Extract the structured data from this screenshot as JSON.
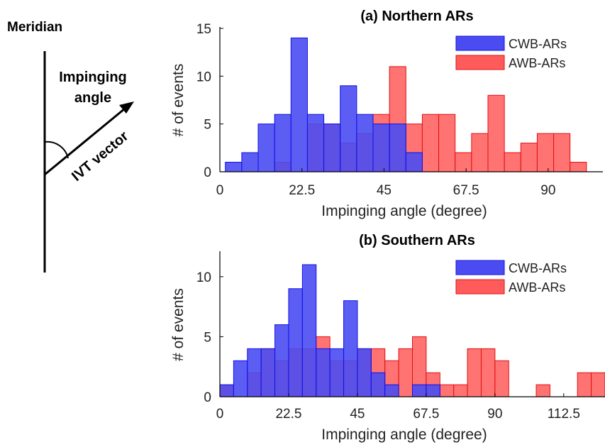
{
  "schematic": {
    "meridian_label": "Meridian",
    "impinging_angle_label_line1": "Impinging",
    "impinging_angle_label_line2": "angle",
    "ivt_vector_label": "IVT vector"
  },
  "colors": {
    "cwb": "#4a4cf2",
    "cwb_edge": "#1010e6",
    "awb": "#ff5b5b",
    "awb_edge": "#e01010",
    "overlap": "#d0237a"
  },
  "chart_data": [
    {
      "type": "bar",
      "title": "(a) Northern ARs",
      "xlabel": "Impinging angle (degree)",
      "ylabel": "# of events",
      "xlim": [
        0,
        105
      ],
      "ylim": [
        0,
        15
      ],
      "xticks": [
        0,
        22.5,
        45,
        67.5,
        90
      ],
      "xtick_labels": [
        "0",
        "22.5",
        "45",
        "67.5",
        "90"
      ],
      "yticks": [
        0,
        5,
        10,
        15
      ],
      "ytick_labels": [
        "0",
        "5",
        "10",
        "15"
      ],
      "bin_width": 4.5,
      "legend_position": "top-right",
      "series": [
        {
          "name": "CWB-ARs",
          "bin_starts": [
            1.5,
            6,
            10.5,
            15,
            19.5,
            24,
            28.5,
            33,
            37.5,
            42,
            46.5,
            51
          ],
          "values": [
            1,
            2,
            5,
            6,
            14,
            6,
            5,
            9,
            6,
            5,
            5,
            2
          ]
        },
        {
          "name": "AWB-ARs",
          "bin_starts": [
            15,
            19.5,
            24,
            28.5,
            33,
            37.5,
            42,
            46.5,
            51,
            55.5,
            60,
            64.5,
            69,
            73.5,
            78,
            82.5,
            87,
            91.5,
            96,
            100.5
          ],
          "values": [
            1,
            0,
            5,
            5,
            3,
            4,
            6,
            11,
            5,
            6,
            6,
            2,
            4,
            8,
            2,
            3,
            4,
            4,
            1,
            0
          ]
        }
      ]
    },
    {
      "type": "bar",
      "title": "(b) Southern ARs",
      "xlabel": "Impinging angle (degree)",
      "ylabel": "# of events",
      "xlim": [
        0,
        126
      ],
      "ylim": [
        0,
        12
      ],
      "xticks": [
        0,
        22.5,
        45,
        67.5,
        90,
        112.5
      ],
      "xtick_labels": [
        "0",
        "22.5",
        "45",
        "67.5",
        "90",
        "112.5"
      ],
      "yticks": [
        0,
        5,
        10
      ],
      "ytick_labels": [
        "0",
        "5",
        "10"
      ],
      "bin_width": 4.5,
      "legend_position": "top-right",
      "series": [
        {
          "name": "CWB-ARs",
          "bin_starts": [
            0,
            4.5,
            9,
            13.5,
            18,
            22.5,
            27,
            31.5,
            36,
            40.5,
            45,
            49.5,
            54,
            58.5,
            63,
            67.5,
            72
          ],
          "values": [
            1,
            3,
            4,
            4,
            6,
            9,
            11,
            4,
            4,
            8,
            4,
            2,
            1,
            0,
            1,
            1,
            0
          ]
        },
        {
          "name": "AWB-ARs",
          "bin_starts": [
            0,
            4.5,
            9,
            13.5,
            18,
            22.5,
            27,
            31.5,
            36,
            40.5,
            45,
            49.5,
            54,
            58.5,
            63,
            67.5,
            72,
            76.5,
            81,
            85.5,
            90,
            94.5,
            99,
            103.5,
            108,
            112.5,
            117,
            121.5
          ],
          "values": [
            1,
            0,
            2,
            4,
            3,
            4,
            4,
            5,
            3,
            3,
            4,
            4,
            3,
            4,
            5,
            2,
            1,
            1,
            4,
            4,
            3,
            0,
            0,
            1,
            0,
            0,
            2,
            2
          ]
        }
      ]
    }
  ]
}
